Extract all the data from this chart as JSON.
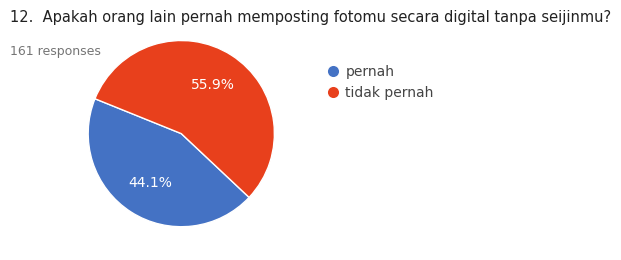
{
  "title": "12.  Apakah orang lain pernah memposting fotomu secara digital tanpa seijinmu?",
  "responses_label": "161 responses",
  "labels": [
    "pernah",
    "tidak pernah"
  ],
  "values": [
    44.1,
    55.9
  ],
  "colors": [
    "#4472C4",
    "#E8401C"
  ],
  "autopct_labels": [
    "44.1%",
    "55.9%"
  ],
  "startangle": 158,
  "background_color": "#ffffff",
  "title_fontsize": 10.5,
  "responses_fontsize": 9,
  "legend_fontsize": 10,
  "autopct_fontsize": 10
}
